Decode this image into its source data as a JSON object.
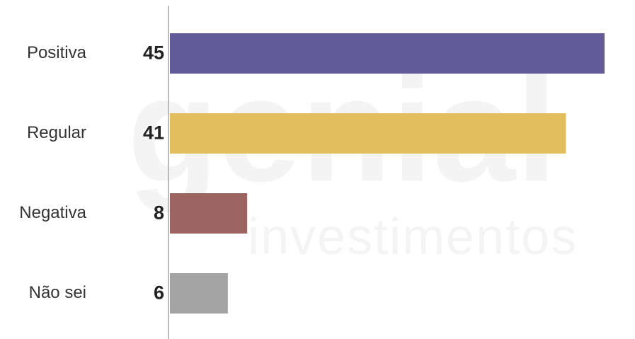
{
  "chart_data": {
    "type": "bar",
    "orientation": "horizontal",
    "categories": [
      "Positiva",
      "Regular",
      "Negativa",
      "Não sei"
    ],
    "values": [
      45,
      41,
      8,
      6
    ],
    "colors": [
      "#625b97",
      "#e2bf5c",
      "#9c6461",
      "#a3a3a3"
    ],
    "watermark": [
      "genial",
      "investimentos"
    ]
  }
}
